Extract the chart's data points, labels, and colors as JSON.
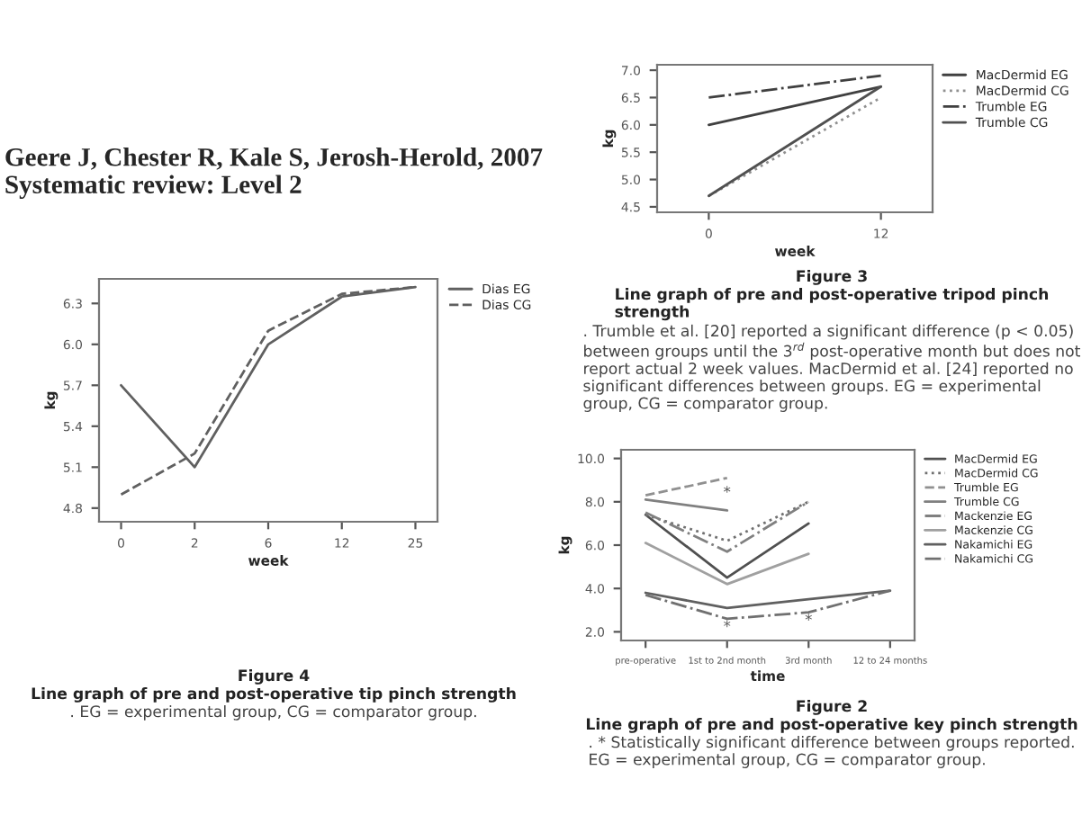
{
  "chart_data": [
    {
      "type": "line",
      "title": "Geere J, Chester R, Kale S, Jerosh-Herold, 2007 Systematic review: Level 2",
      "xlabel": "week",
      "ylabel": "kg",
      "categories": [
        "0",
        "2",
        "6",
        "12",
        "25"
      ],
      "series": [
        {
          "name": "Dias EG",
          "color": "#606060",
          "line_style": "solid",
          "values": [
            5.7,
            5.1,
            6.0,
            6.35,
            6.42
          ]
        },
        {
          "name": "Dias CG",
          "color": "#606060",
          "line_style": "dashed",
          "values": [
            4.9,
            5.2,
            6.1,
            6.37,
            6.42
          ]
        }
      ],
      "ylim": [
        4.7,
        6.48
      ],
      "yticks": [
        4.8,
        5.1,
        5.4,
        5.7,
        {
          "value": 6.0,
          "label": "6.0"
        },
        6.3
      ],
      "grid": false,
      "legend": "right",
      "annotations": [
        "Figure 4",
        "Line graph of pre and post-operative tip pinch strength",
        ". EG = experimental group, CG = comparator group."
      ]
    },
    {
      "type": "line",
      "xlabel": "week",
      "ylabel": "kg",
      "categories": [
        "0",
        "12"
      ],
      "series": [
        {
          "name": "MacDermid EG",
          "color": "#404040",
          "line_style": "solid",
          "values": [
            6.0,
            6.7
          ]
        },
        {
          "name": "MacDermid CG",
          "color": "#909090",
          "line_style": "dotted",
          "values": [
            4.7,
            6.5
          ]
        },
        {
          "name": "Trumble EG",
          "color": "#404040",
          "line_style": "dashdot",
          "values": [
            6.5,
            6.9
          ]
        },
        {
          "name": "Trumble CG",
          "color": "#505050",
          "line_style": "solid",
          "values": [
            4.7,
            6.7
          ]
        }
      ],
      "ylim": [
        4.4,
        7.1
      ],
      "yticks": [
        {
          "value": 4.5,
          "label": "4.5"
        },
        {
          "value": 5.0,
          "label": "5.0"
        },
        {
          "value": 5.5,
          "label": "5.5"
        },
        {
          "value": 6.0,
          "label": "6.0"
        },
        {
          "value": 6.5,
          "label": "6.5"
        },
        {
          "value": 7.0,
          "label": "7.0"
        }
      ],
      "grid": false,
      "legend": "right",
      "annotations": [
        "Figure 3",
        "Line graph of pre and post-operative tripod pinch strength",
        ". Trumble et al. [20] reported a significant difference (p < 0.05) between groups until the 3$^{rd}$ post-operative month but does not report actual 2 week values. MacDermid et al. [24] reported no significant differences between groups. EG = experimental group, CG = comparator group."
      ]
    },
    {
      "type": "line",
      "xlabel": "time",
      "ylabel": "kg",
      "categories": [
        "pre-operative",
        "1st to 2nd month",
        "3rd month",
        "12 to 24 months"
      ],
      "series": [
        {
          "name": "MacDermid EG",
          "color": "#505050",
          "line_style": "solid",
          "values": [
            7.4,
            4.5,
            7.0,
            null
          ]
        },
        {
          "name": "MacDermid CG",
          "color": "#707070",
          "line_style": "dotted",
          "values": [
            7.4,
            6.2,
            8.0,
            null
          ]
        },
        {
          "name": "Trumble EG",
          "color": "#909090",
          "line_style": "dashed",
          "values": [
            8.3,
            9.1,
            null,
            null
          ]
        },
        {
          "name": "Trumble CG",
          "color": "#808080",
          "line_style": "solid",
          "values": [
            8.1,
            7.6,
            null,
            null
          ]
        },
        {
          "name": "Mackenzie EG",
          "color": "#808080",
          "line_style": "dashdot",
          "values": [
            7.5,
            5.7,
            8.0,
            null
          ]
        },
        {
          "name": "Mackenzie CG",
          "color": "#a0a0a0",
          "line_style": "solid",
          "values": [
            6.1,
            4.2,
            5.6,
            null
          ]
        },
        {
          "name": "Nakamichi EG",
          "color": "#606060",
          "line_style": "solid",
          "values": [
            3.8,
            3.1,
            3.5,
            3.9
          ]
        },
        {
          "name": "Nakamichi CG",
          "color": "#707070",
          "line_style": "dashdot",
          "values": [
            3.7,
            2.6,
            2.9,
            3.9
          ]
        }
      ],
      "ylim": [
        1.6,
        10.4
      ],
      "yticks": [
        {
          "value": 2,
          "label": "2.0"
        },
        {
          "value": 4,
          "label": "4.0"
        },
        {
          "value": 6,
          "label": "6.0"
        },
        {
          "value": 8,
          "label": "8.0"
        },
        {
          "value": 10,
          "label": "10.0"
        }
      ],
      "grid": false,
      "legend": "right",
      "annotations": [
        "Figure 2",
        "Line graph of pre and post-operative key pinch strength",
        ". * Statistically significant difference between groups reported. EG = experimental group, CG = comparator group.",
        {
          "text": "*",
          "x": "1st to 2nd month",
          "y": 9.1
        },
        {
          "text": "*",
          "x": "3rd month",
          "y": 3.2
        },
        {
          "text": "*",
          "x": "1st to 2nd month",
          "y": 2.9
        }
      ]
    }
  ]
}
